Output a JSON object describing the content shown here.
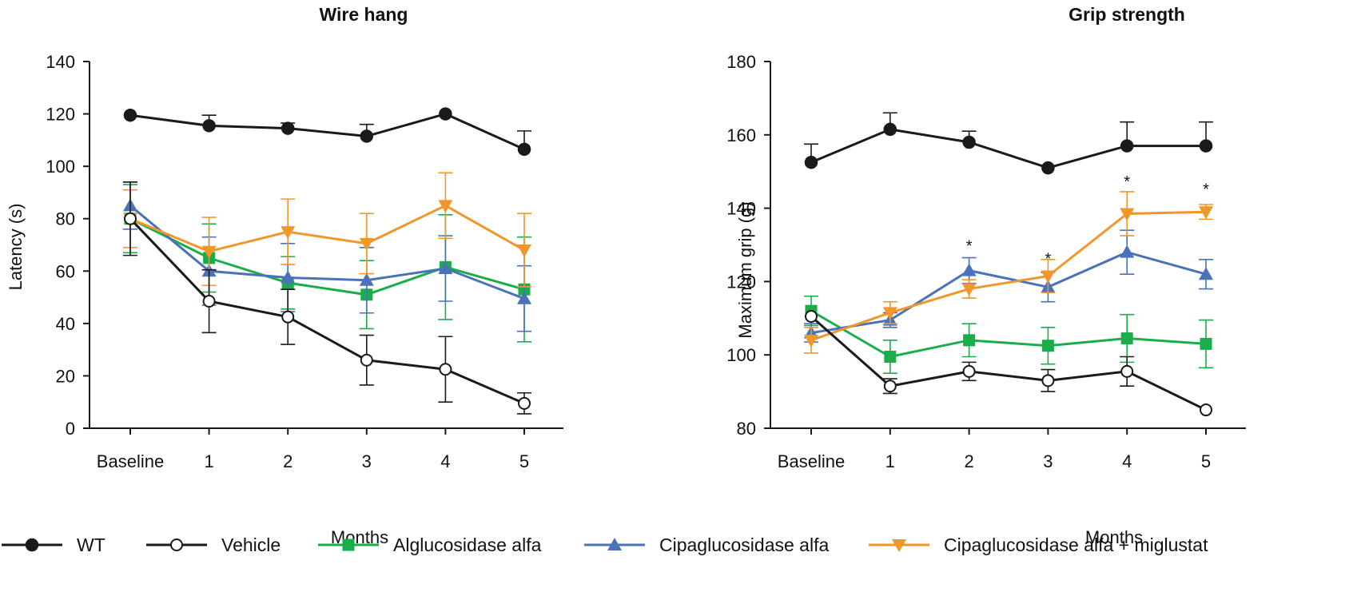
{
  "legend": [
    {
      "name": "WT",
      "color": "#1a1a1a",
      "marker": "circle-filled"
    },
    {
      "name": "Vehicle",
      "color": "#1a1a1a",
      "marker": "circle-open"
    },
    {
      "name": "Alglucosidase alfa",
      "color": "#1aae4a",
      "marker": "square"
    },
    {
      "name": "Cipaglucosidase alfa",
      "color": "#4a72b8",
      "marker": "triangle-up"
    },
    {
      "name": "Cipaglucosidase alfa + miglustat",
      "color": "#f0962a",
      "marker": "triangle-down"
    }
  ],
  "chart_data": [
    {
      "type": "line",
      "title": "Wire hang",
      "xlabel": "Months",
      "ylabel": "Latency (s)",
      "categories": [
        "Baseline",
        "1",
        "2",
        "3",
        "4",
        "5"
      ],
      "ylim": [
        0,
        140
      ],
      "yticks": [
        0,
        20,
        40,
        60,
        80,
        100,
        120,
        140
      ],
      "series": [
        {
          "name": "WT",
          "values": [
            119.5,
            115.5,
            114.5,
            111.5,
            120,
            106.5
          ],
          "err": [
            0,
            4,
            2,
            4.5,
            0,
            7
          ]
        },
        {
          "name": "Vehicle",
          "values": [
            80,
            48.5,
            42.5,
            26,
            22.5,
            9.5
          ],
          "err": [
            14,
            12,
            10.5,
            9.5,
            12.5,
            4
          ]
        },
        {
          "name": "Alglucosidase alfa",
          "values": [
            80,
            65,
            55.5,
            51,
            61.5,
            53
          ],
          "err": [
            13,
            13,
            10,
            13,
            20,
            20
          ]
        },
        {
          "name": "Cipaglucosidase alfa",
          "values": [
            85,
            60,
            57.5,
            56.5,
            61,
            49.5
          ],
          "err": [
            9,
            13,
            13,
            12.5,
            12.5,
            12.5
          ]
        },
        {
          "name": "Cipaglucosidase alfa + miglustat",
          "values": [
            80,
            67.5,
            75,
            70.5,
            85,
            68
          ],
          "err": [
            11,
            13,
            12.5,
            11.5,
            12.5,
            14
          ]
        }
      ],
      "annotations": []
    },
    {
      "type": "line",
      "title": "Grip strength",
      "xlabel": "Months",
      "ylabel": "Maximum grip (g)",
      "categories": [
        "Baseline",
        "1",
        "2",
        "3",
        "4",
        "5"
      ],
      "ylim": [
        80,
        180
      ],
      "yticks": [
        80,
        100,
        120,
        140,
        160,
        180
      ],
      "series": [
        {
          "name": "WT",
          "values": [
            152.5,
            161.5,
            158,
            151,
            157,
            157
          ],
          "err": [
            5,
            4.5,
            3,
            0,
            6.5,
            6.5
          ]
        },
        {
          "name": "Vehicle",
          "values": [
            110.5,
            91.5,
            95.5,
            93,
            95.5,
            85
          ],
          "err": [
            0,
            2,
            2.5,
            3,
            4,
            0
          ]
        },
        {
          "name": "Alglucosidase alfa",
          "values": [
            112,
            99.5,
            104,
            102.5,
            104.5,
            103
          ],
          "err": [
            4,
            4.5,
            4.5,
            5,
            6.5,
            6.5
          ]
        },
        {
          "name": "Cipaglucosidase alfa",
          "values": [
            106,
            109.5,
            123,
            118.5,
            128,
            122
          ],
          "err": [
            2.5,
            2,
            3.5,
            4,
            6,
            4
          ]
        },
        {
          "name": "Cipaglucosidase alfa + miglustat",
          "values": [
            104,
            111.5,
            118,
            121.5,
            138.5,
            139
          ],
          "err": [
            3.5,
            3,
            2.5,
            4.5,
            6,
            2
          ]
        }
      ],
      "annotations": [
        {
          "text": "*",
          "category_index": 2,
          "value": 130
        },
        {
          "text": "*",
          "category_index": 3,
          "value": 126.5
        },
        {
          "text": "*",
          "category_index": 4,
          "value": 147.5
        },
        {
          "text": "*",
          "category_index": 5,
          "value": 145.5
        }
      ]
    }
  ]
}
